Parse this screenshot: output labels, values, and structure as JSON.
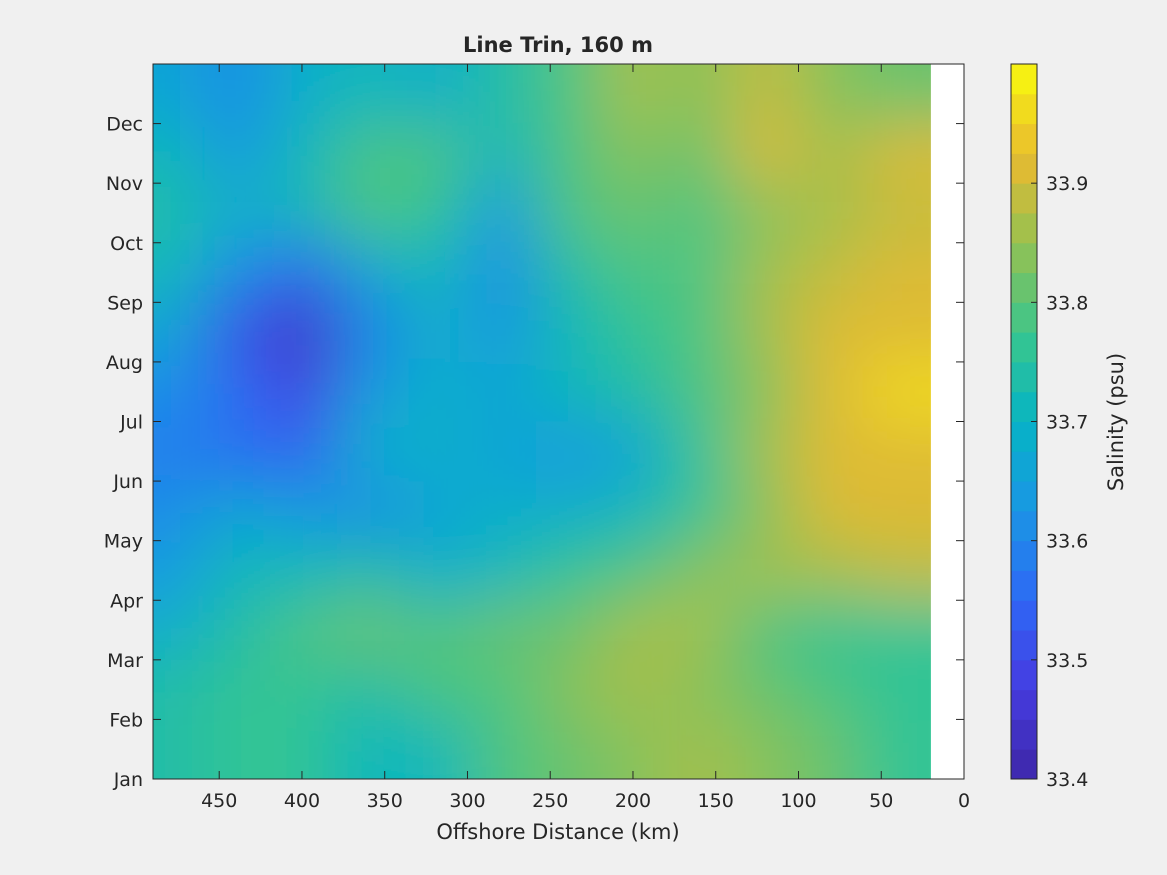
{
  "chart_data": {
    "type": "heatmap",
    "title": "Line Trin, 160 m",
    "xlabel": "Offshore Distance (km)",
    "ylabel": "",
    "x_reversed": true,
    "xlim": [
      490,
      0
    ],
    "xticks": [
      450,
      400,
      350,
      300,
      250,
      200,
      150,
      100,
      50,
      0
    ],
    "yticks": [
      "Jan",
      "Feb",
      "Mar",
      "Apr",
      "May",
      "Jun",
      "Jul",
      "Aug",
      "Sep",
      "Oct",
      "Nov",
      "Dec"
    ],
    "data_x_range": [
      490,
      20
    ],
    "colorbar": {
      "label": "Salinity (psu)",
      "min": 33.4,
      "max": 34.0,
      "step": 0.025,
      "ticks": [
        "33.4",
        "33.5",
        "33.6",
        "33.7",
        "33.8",
        "33.9"
      ],
      "colormap": "parula"
    },
    "x": [
      480,
      440,
      400,
      360,
      320,
      280,
      240,
      200,
      160,
      120,
      80,
      40
    ],
    "months": [
      "Jan",
      "Feb",
      "Mar",
      "Apr",
      "May",
      "Jun",
      "Jul",
      "Aug",
      "Sep",
      "Oct",
      "Nov",
      "Dec"
    ],
    "values": [
      [
        33.74,
        33.75,
        33.77,
        33.7,
        33.72,
        33.78,
        33.82,
        33.84,
        33.86,
        33.84,
        33.82,
        33.77
      ],
      [
        33.73,
        33.75,
        33.77,
        33.74,
        33.78,
        33.8,
        33.83,
        33.86,
        33.84,
        33.81,
        33.78,
        33.75
      ],
      [
        33.68,
        33.74,
        33.78,
        33.82,
        33.8,
        33.81,
        33.82,
        33.87,
        33.85,
        33.8,
        33.76,
        33.77
      ],
      [
        33.64,
        33.7,
        33.72,
        33.74,
        33.69,
        33.72,
        33.76,
        33.8,
        33.83,
        33.85,
        33.87,
        33.88
      ],
      [
        33.62,
        33.66,
        33.64,
        33.6,
        33.66,
        33.68,
        33.68,
        33.72,
        33.76,
        33.84,
        33.9,
        33.9
      ],
      [
        33.58,
        33.56,
        33.54,
        33.68,
        33.68,
        33.67,
        33.64,
        33.66,
        33.76,
        33.86,
        33.92,
        33.92
      ],
      [
        33.6,
        33.56,
        33.48,
        33.64,
        33.68,
        33.67,
        33.7,
        33.73,
        33.78,
        33.84,
        33.92,
        33.96
      ],
      [
        33.66,
        33.5,
        33.44,
        33.58,
        33.68,
        33.64,
        33.7,
        33.76,
        33.8,
        33.85,
        33.9,
        33.92
      ],
      [
        33.72,
        33.6,
        33.55,
        33.66,
        33.72,
        33.6,
        33.74,
        33.78,
        33.8,
        33.85,
        33.88,
        33.9
      ],
      [
        33.74,
        33.68,
        33.72,
        33.78,
        33.76,
        33.64,
        33.78,
        33.82,
        33.79,
        33.84,
        33.86,
        33.88
      ],
      [
        33.72,
        33.64,
        33.7,
        33.8,
        33.8,
        33.72,
        33.8,
        33.84,
        33.82,
        33.9,
        33.86,
        33.9
      ],
      [
        33.66,
        33.62,
        33.68,
        33.72,
        33.68,
        33.74,
        33.78,
        33.86,
        33.84,
        33.88,
        33.84,
        33.81
      ]
    ]
  }
}
